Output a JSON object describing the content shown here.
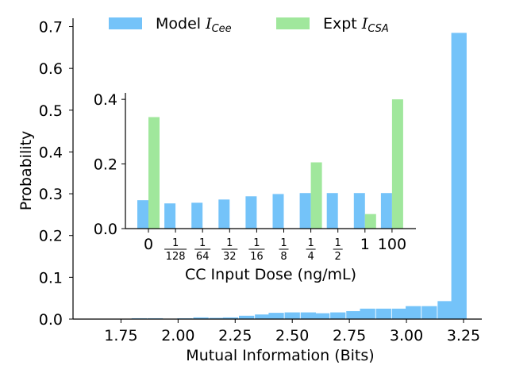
{
  "colors": {
    "model": "#74c3f9",
    "expt": "#a0e79c",
    "axis": "#000000"
  },
  "legend": [
    {
      "name": "Model",
      "sub": "Cee",
      "color": "#74c3f9"
    },
    {
      "name": "Expt",
      "sub": "CSA",
      "color": "#a0e79c"
    }
  ],
  "chart_data": [
    {
      "type": "bar",
      "title": "",
      "xlabel": "Mutual Information (Bits)",
      "ylabel": "Probability",
      "xlim": [
        1.54,
        3.33
      ],
      "ylim": [
        0.0,
        0.72
      ],
      "xticks": [
        "1.75",
        "2.00",
        "2.25",
        "2.50",
        "2.75",
        "3.00",
        "3.25"
      ],
      "yticks": [
        "0.0",
        "0.1",
        "0.2",
        "0.3",
        "0.4",
        "0.5",
        "0.6",
        "0.7"
      ],
      "bin_width": 0.067,
      "bins": [
        {
          "x": 1.83,
          "y": 0.002
        },
        {
          "x": 1.9,
          "y": 0.002
        },
        {
          "x": 1.97,
          "y": 0.001
        },
        {
          "x": 2.03,
          "y": 0.002
        },
        {
          "x": 2.1,
          "y": 0.004
        },
        {
          "x": 2.17,
          "y": 0.003
        },
        {
          "x": 2.23,
          "y": 0.004
        },
        {
          "x": 2.3,
          "y": 0.008
        },
        {
          "x": 2.37,
          "y": 0.011
        },
        {
          "x": 2.43,
          "y": 0.015
        },
        {
          "x": 2.5,
          "y": 0.016
        },
        {
          "x": 2.57,
          "y": 0.016
        },
        {
          "x": 2.63,
          "y": 0.014
        },
        {
          "x": 2.7,
          "y": 0.016
        },
        {
          "x": 2.77,
          "y": 0.019
        },
        {
          "x": 2.83,
          "y": 0.025
        },
        {
          "x": 2.9,
          "y": 0.025
        },
        {
          "x": 2.97,
          "y": 0.025
        },
        {
          "x": 3.03,
          "y": 0.031
        },
        {
          "x": 3.1,
          "y": 0.031
        },
        {
          "x": 3.17,
          "y": 0.043
        },
        {
          "x": 3.23,
          "y": 0.685
        }
      ]
    },
    {
      "type": "bar",
      "title": "",
      "xlabel": "CC Input Dose (ng/mL)",
      "ylabel": "",
      "ylim": [
        0.0,
        0.42
      ],
      "yticks": [
        "0.0",
        "0.2",
        "0.4"
      ],
      "categories": [
        {
          "label": "0"
        },
        {
          "num": "1",
          "den": "128"
        },
        {
          "num": "1",
          "den": "64"
        },
        {
          "num": "1",
          "den": "32"
        },
        {
          "num": "1",
          "den": "16"
        },
        {
          "num": "1",
          "den": "8"
        },
        {
          "num": "1",
          "den": "4"
        },
        {
          "num": "1",
          "den": "2"
        },
        {
          "label": "1"
        },
        {
          "label": "100"
        }
      ],
      "series": [
        {
          "name": "Model Cee",
          "values": [
            0.088,
            0.078,
            0.08,
            0.09,
            0.1,
            0.107,
            0.11,
            0.11,
            0.11,
            0.11
          ]
        },
        {
          "name": "Expt CSA",
          "values": [
            0.345,
            0.0,
            0.0,
            0.0,
            0.0,
            0.0,
            0.205,
            0.0,
            0.045,
            0.4
          ]
        }
      ]
    }
  ]
}
